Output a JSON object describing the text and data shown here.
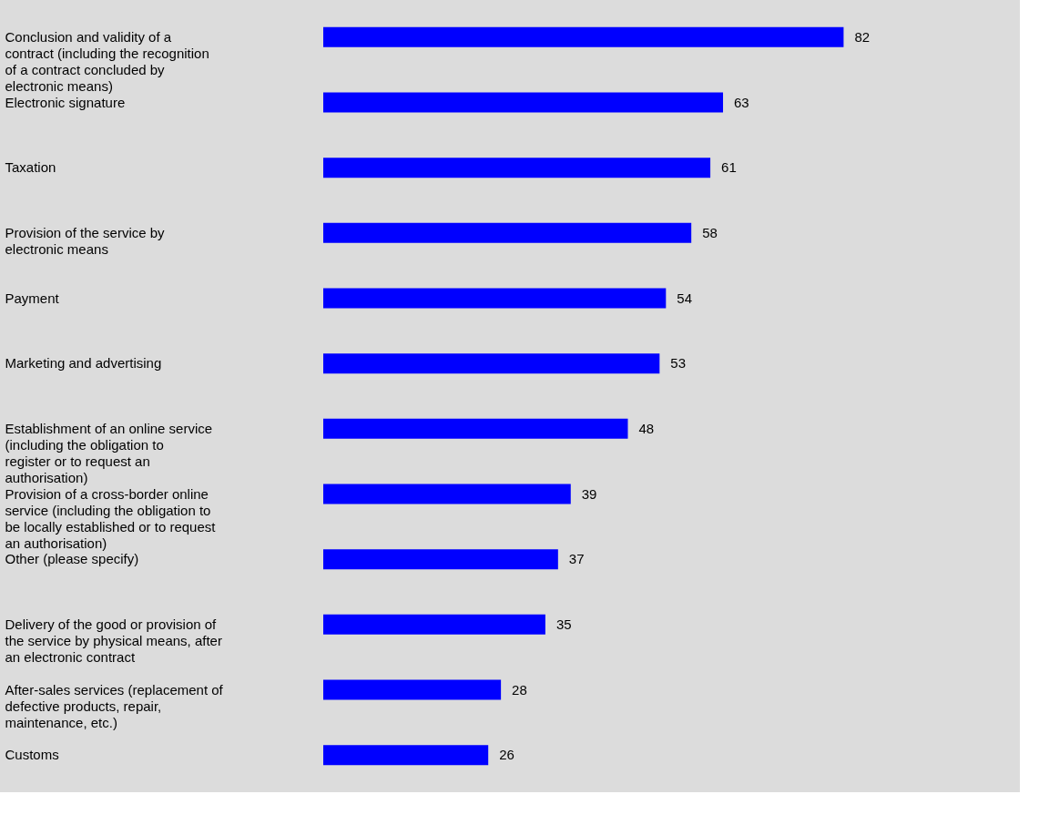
{
  "chart_data": {
    "type": "bar",
    "orientation": "horizontal",
    "data_labels": true,
    "color": "#0000ff",
    "categories": [
      "Conclusion and validity of a contract (including the recognition of a contract concluded by electronic means)",
      "Electronic signature",
      "Taxation",
      "Provision of the service by electronic means",
      "Payment",
      "Marketing and advertising",
      "Establishment of an online service (including the obligation to register or to request an authorisation)",
      "Provision of a cross-border online service (including the obligation to be locally established or to request an authorisation)",
      "Other (please specify)",
      "Delivery of the good or provision of the service by physical means, after an electronic contract",
      "After-sales services (replacement of defective products, repair, maintenance, etc.)",
      "Customs"
    ],
    "values": [
      82,
      63,
      61,
      58,
      54,
      53,
      48,
      39,
      37,
      35,
      28,
      26
    ]
  }
}
